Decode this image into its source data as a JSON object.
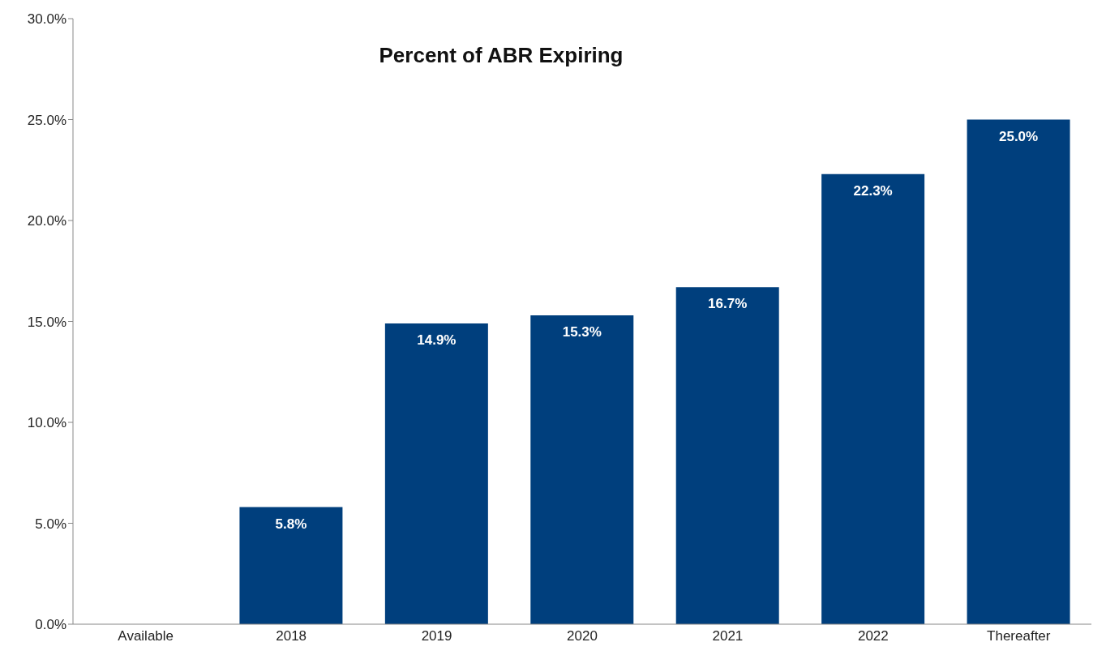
{
  "chart_data": {
    "type": "bar",
    "title": "Percent of ABR Expiring",
    "categories": [
      "Available",
      "2018",
      "2019",
      "2020",
      "2021",
      "2022",
      "Thereafter"
    ],
    "values": [
      null,
      5.8,
      14.9,
      15.3,
      16.7,
      22.3,
      25.0
    ],
    "value_labels": [
      null,
      "5.8%",
      "14.9%",
      "15.3%",
      "16.7%",
      "22.3%",
      "25.0%"
    ],
    "color": "#003f7d",
    "ylim": [
      0,
      30
    ],
    "yticks": [
      {
        "value": 0,
        "label": "0.0%"
      },
      {
        "value": 5,
        "label": "5.0%"
      },
      {
        "value": 10,
        "label": "10.0%"
      },
      {
        "value": 15,
        "label": "15.0%"
      },
      {
        "value": 20,
        "label": "20.0%"
      },
      {
        "value": 25,
        "label": "25.0%"
      },
      {
        "value": 30,
        "label": "30.0%"
      }
    ],
    "grid": false,
    "legend": false
  }
}
